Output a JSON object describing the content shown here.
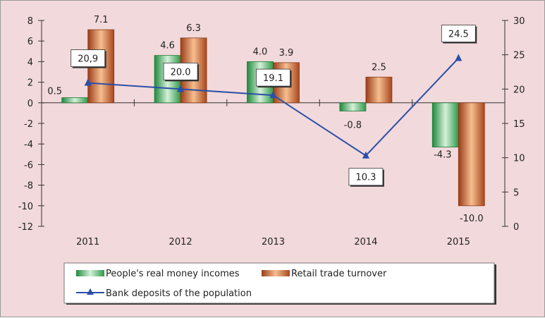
{
  "chart_data": {
    "type": "bar",
    "categories": [
      "2011",
      "2012",
      "2013",
      "2014",
      "2015"
    ],
    "series": [
      {
        "name": "People's real money incomes",
        "kind": "bar",
        "axis": "left",
        "values": [
          0.5,
          4.6,
          4.0,
          -0.8,
          -4.3
        ],
        "labels": [
          "0.5",
          "4.6",
          "4.0",
          "-0.8",
          "-4.3"
        ],
        "color": "#2e9a4a"
      },
      {
        "name": "Retail trade turnover",
        "kind": "bar",
        "axis": "left",
        "values": [
          7.1,
          6.3,
          3.9,
          2.5,
          -10.0
        ],
        "labels": [
          "7.1",
          "6.3",
          "3.9",
          "2.5",
          "-10.0"
        ],
        "color": "#b5582a"
      },
      {
        "name": "Bank deposits of the population",
        "kind": "line",
        "axis": "right",
        "values": [
          20.9,
          20.0,
          19.1,
          10.3,
          24.5
        ],
        "labels": [
          "20,9",
          "20.0",
          "19.1",
          "10.3",
          "24.5"
        ],
        "color": "#2a4fa8"
      }
    ],
    "y_left": {
      "min": -12,
      "max": 8,
      "ticks": [
        "8",
        "6",
        "4",
        "2",
        "0",
        "-2",
        "-4",
        "-6",
        "-8",
        "-10",
        "-12"
      ]
    },
    "y_right": {
      "min": 0,
      "max": 30,
      "ticks": [
        "30",
        "25",
        "20",
        "15",
        "10",
        "5",
        "0"
      ]
    },
    "legend_position": "bottom",
    "grid": false
  }
}
